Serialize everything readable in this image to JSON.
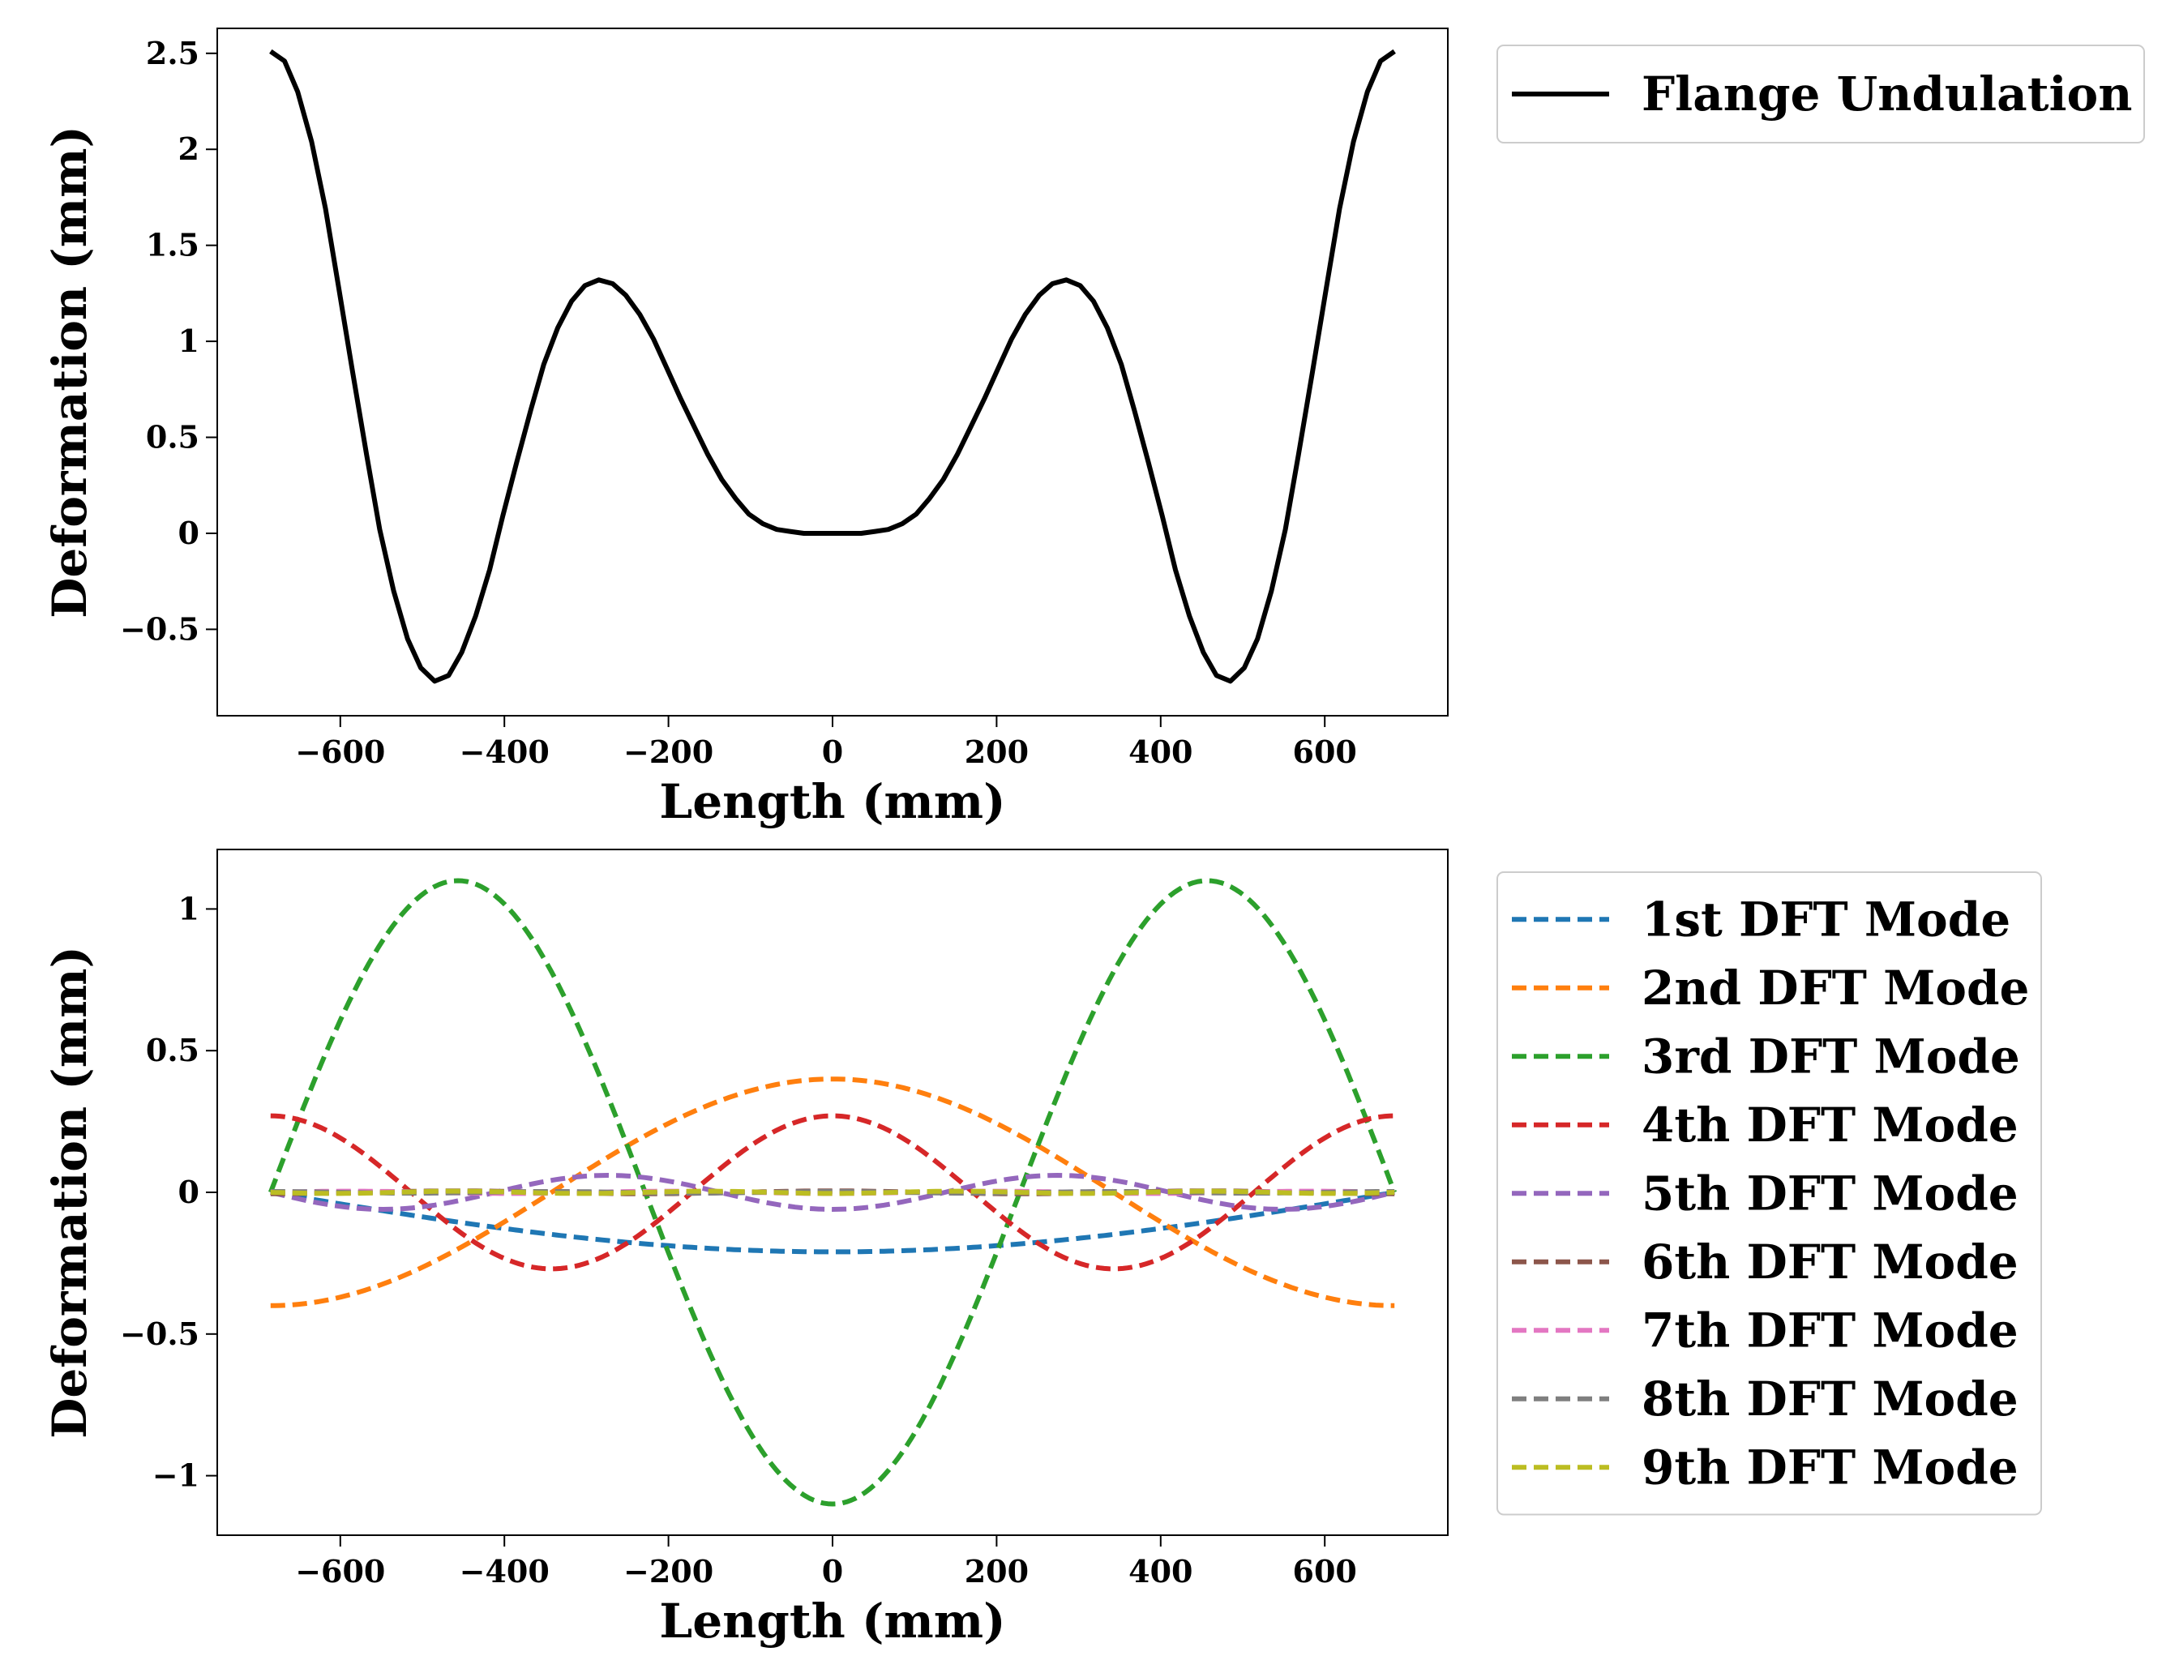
{
  "chart_data": [
    {
      "type": "line",
      "xlabel": "Length (mm)",
      "ylabel": "Deformation (mm)",
      "xlim": [
        -750,
        750
      ],
      "ylim": [
        -0.95,
        2.63
      ],
      "xticks": [
        -600,
        -400,
        -200,
        0,
        200,
        400,
        600
      ],
      "yticks": [
        -0.5,
        0.0,
        0.5,
        1.0,
        1.5,
        2.0,
        2.5
      ],
      "legend_position": "outside-right",
      "series": [
        {
          "name": "Flange Undulation",
          "color": "#000000",
          "style": "solid",
          "x": [
            -685,
            -668,
            -652,
            -635,
            -618,
            -602,
            -585,
            -568,
            -552,
            -535,
            -518,
            -502,
            -485,
            -468,
            -452,
            -435,
            -418,
            -402,
            -385,
            -368,
            -352,
            -335,
            -318,
            -302,
            -285,
            -268,
            -252,
            -235,
            -218,
            -202,
            -185,
            -168,
            -152,
            -135,
            -118,
            -102,
            -85,
            -68,
            -52,
            -35,
            -18,
            0,
            18,
            35,
            52,
            68,
            85,
            102,
            118,
            135,
            152,
            168,
            185,
            202,
            218,
            235,
            252,
            268,
            285,
            302,
            318,
            335,
            352,
            368,
            385,
            402,
            418,
            435,
            452,
            468,
            485,
            502,
            518,
            535,
            552,
            568,
            585,
            602,
            618,
            635,
            652,
            668,
            685
          ],
          "y": [
            2.51,
            2.46,
            2.3,
            2.04,
            1.69,
            1.28,
            0.84,
            0.41,
            0.02,
            -0.3,
            -0.55,
            -0.7,
            -0.77,
            -0.74,
            -0.62,
            -0.43,
            -0.19,
            0.09,
            0.37,
            0.64,
            0.88,
            1.07,
            1.21,
            1.29,
            1.32,
            1.3,
            1.24,
            1.14,
            1.01,
            0.86,
            0.7,
            0.55,
            0.41,
            0.28,
            0.18,
            0.1,
            0.05,
            0.02,
            0.01,
            0.0,
            0.0,
            0.0,
            0.0,
            0.0,
            0.01,
            0.02,
            0.05,
            0.1,
            0.18,
            0.28,
            0.41,
            0.55,
            0.7,
            0.86,
            1.01,
            1.14,
            1.24,
            1.3,
            1.32,
            1.29,
            1.21,
            1.07,
            0.88,
            0.64,
            0.37,
            0.09,
            -0.19,
            -0.43,
            -0.62,
            -0.74,
            -0.77,
            -0.7,
            -0.55,
            -0.3,
            0.02,
            0.41,
            0.84,
            1.28,
            1.69,
            2.04,
            2.3,
            2.46,
            2.51
          ]
        }
      ]
    },
    {
      "type": "line",
      "xlabel": "Length (mm)",
      "ylabel": "Deformation (mm)",
      "xlim": [
        -750,
        750
      ],
      "ylim": [
        -1.21,
        1.21
      ],
      "xticks": [
        -600,
        -400,
        -200,
        0,
        200,
        400,
        600
      ],
      "yticks": [
        -1.0,
        -0.5,
        0.0,
        0.5,
        1.0
      ],
      "legend_position": "outside-right",
      "x_range": [
        -685,
        685
      ],
      "series": [
        {
          "name": "1st DFT Mode",
          "color": "#1f77b4",
          "style": "dashed",
          "amplitude": 0.21,
          "waves": 0.5,
          "phase_sign": -1
        },
        {
          "name": "2nd DFT Mode",
          "color": "#ff7f0e",
          "style": "dashed",
          "amplitude": 0.4,
          "waves": 1.0,
          "phase_sign": 1
        },
        {
          "name": "3rd DFT Mode",
          "color": "#2ca02c",
          "style": "dashed",
          "amplitude": 1.1,
          "waves": 1.5,
          "phase_sign": -1
        },
        {
          "name": "4th DFT Mode",
          "color": "#d62728",
          "style": "dashed",
          "amplitude": 0.27,
          "waves": 2.0,
          "phase_sign": 1
        },
        {
          "name": "5th DFT Mode",
          "color": "#9467bd",
          "style": "dashed",
          "amplitude": 0.06,
          "waves": 2.5,
          "phase_sign": -1
        },
        {
          "name": "6th DFT Mode",
          "color": "#8c564b",
          "style": "dashed",
          "amplitude": 0.005,
          "waves": 3.0,
          "phase_sign": 1
        },
        {
          "name": "7th DFT Mode",
          "color": "#e377c2",
          "style": "dashed",
          "amplitude": 0.004,
          "waves": 3.5,
          "phase_sign": -1
        },
        {
          "name": "8th DFT Mode",
          "color": "#7f7f7f",
          "style": "dashed",
          "amplitude": 0.003,
          "waves": 4.0,
          "phase_sign": 1
        },
        {
          "name": "9th DFT Mode",
          "color": "#bcbd22",
          "style": "dashed",
          "amplitude": 0.004,
          "waves": 4.5,
          "phase_sign": -1
        }
      ]
    }
  ]
}
